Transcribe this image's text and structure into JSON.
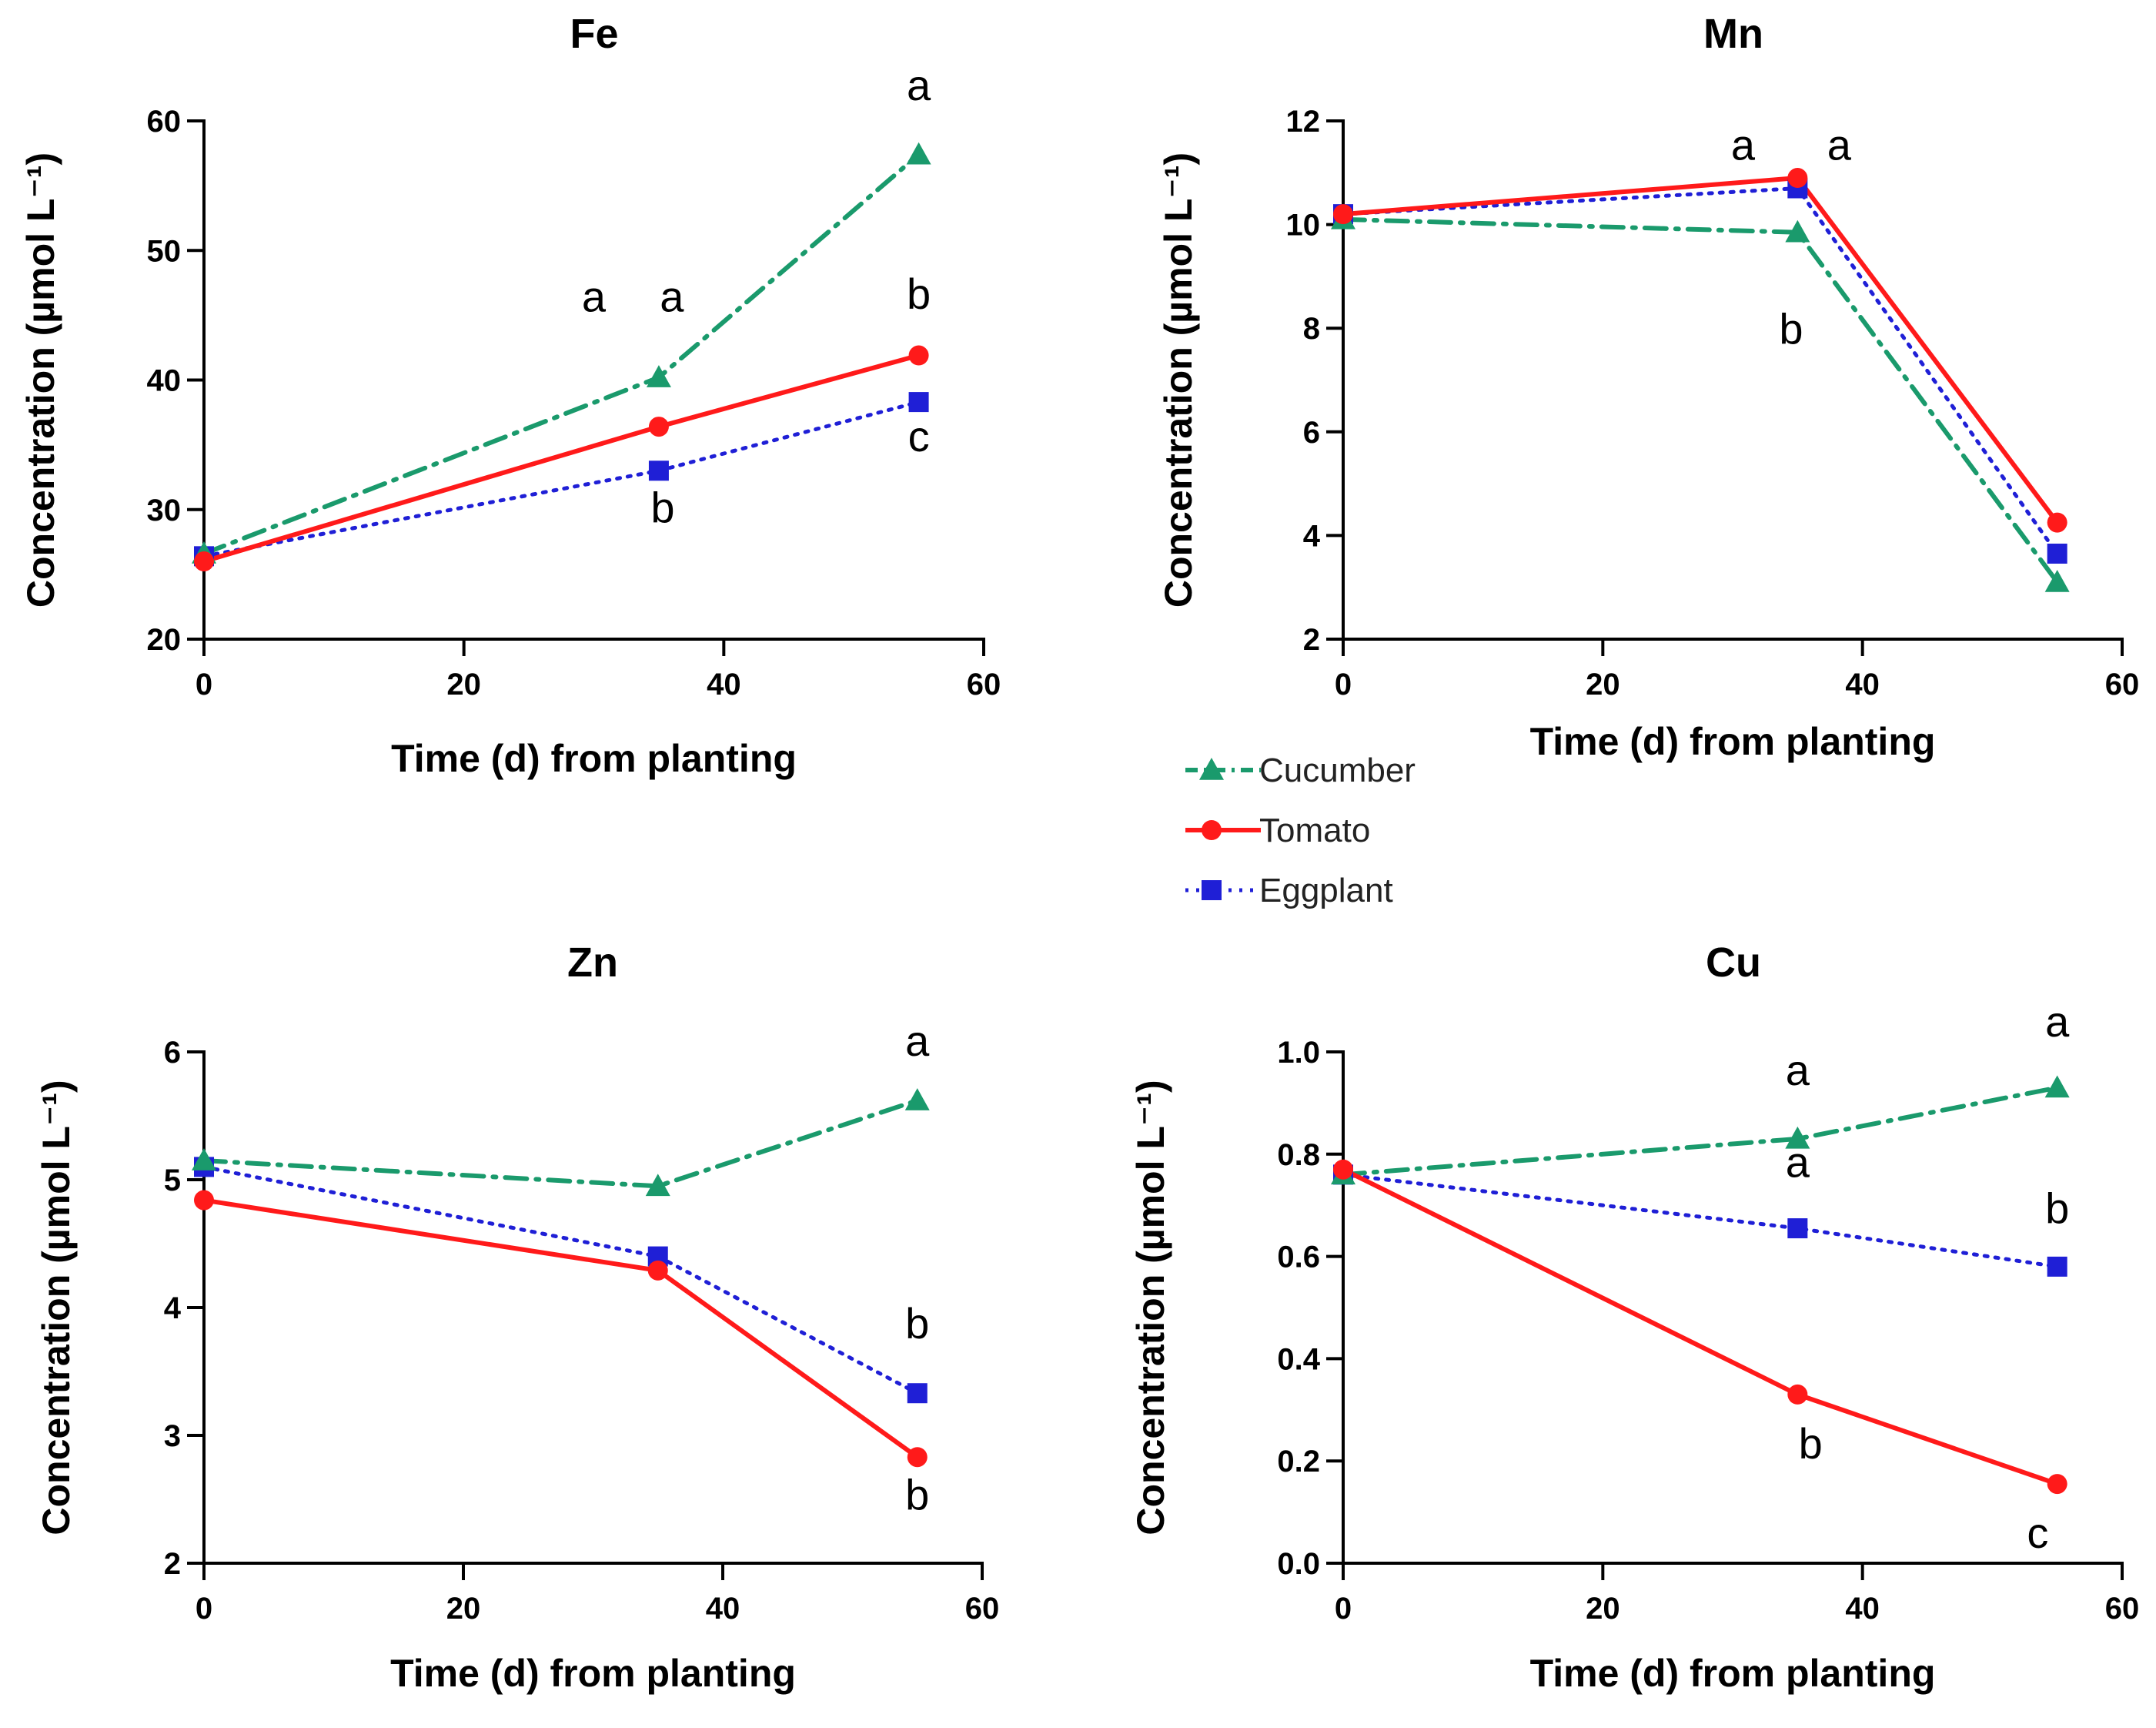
{
  "series_styles": {
    "Cucumber": {
      "color": "#1a9a6c",
      "dash": "28 12 4 12",
      "marker": "triangle",
      "width": 6
    },
    "Tomato": {
      "color": "#ff1a1a",
      "dash": "",
      "marker": "circle",
      "width": 6
    },
    "Eggplant": {
      "color": "#1f1fd6",
      "dash": "4 10",
      "marker": "square",
      "width": 5
    }
  },
  "legend": {
    "entries": [
      "Cucumber",
      "Tomato",
      "Eggplant"
    ]
  },
  "chart_data": [
    {
      "type": "line",
      "title": "Fe",
      "xlabel": "Time (d) from planting",
      "ylabel": "Concentration (µmol L⁻¹)",
      "xlim": [
        0,
        60
      ],
      "ylim": [
        20,
        60
      ],
      "xticks": [
        "0",
        "20",
        "40",
        "60"
      ],
      "yticks": [
        "20",
        "30",
        "40",
        "50",
        "60"
      ],
      "series": [
        {
          "name": "Cucumber",
          "x": [
            0,
            35,
            55
          ],
          "values": [
            26.6,
            40.2,
            57.4
          ]
        },
        {
          "name": "Tomato",
          "x": [
            0,
            35,
            55
          ],
          "values": [
            26.0,
            36.4,
            41.9
          ]
        },
        {
          "name": "Eggplant",
          "x": [
            0,
            35,
            55
          ],
          "values": [
            26.4,
            33.0,
            38.3
          ]
        }
      ],
      "annotations": [
        {
          "text": "a",
          "x": 30,
          "y": 45.3
        },
        {
          "text": "a",
          "x": 36,
          "y": 45.3
        },
        {
          "text": "a",
          "x": 55,
          "y": 61.6
        },
        {
          "text": "b",
          "x": 55,
          "y": 45.5
        },
        {
          "text": "c",
          "x": 55,
          "y": 34.5
        },
        {
          "text": "b",
          "x": 35.3,
          "y": 29.0
        }
      ]
    },
    {
      "type": "line",
      "title": "Mn",
      "xlabel": "Time (d) from planting",
      "ylabel": "Concentration (µmol L⁻¹)",
      "xlim": [
        0,
        60
      ],
      "ylim": [
        2,
        12
      ],
      "xticks": [
        "0",
        "20",
        "40",
        "60"
      ],
      "yticks": [
        "2",
        "4",
        "6",
        "8",
        "10",
        "12"
      ],
      "series": [
        {
          "name": "Cucumber",
          "x": [
            0,
            35,
            55
          ],
          "values": [
            10.1,
            9.85,
            3.1
          ]
        },
        {
          "name": "Tomato",
          "x": [
            0,
            35,
            55
          ],
          "values": [
            10.2,
            10.9,
            4.25
          ]
        },
        {
          "name": "Eggplant",
          "x": [
            0,
            35,
            55
          ],
          "values": [
            10.2,
            10.7,
            3.65
          ]
        }
      ],
      "annotations": [
        {
          "text": "a",
          "x": 30.8,
          "y": 11.25
        },
        {
          "text": "a",
          "x": 38.2,
          "y": 11.25
        },
        {
          "text": "b",
          "x": 34.5,
          "y": 7.7
        }
      ]
    },
    {
      "type": "line",
      "title": "Zn",
      "xlabel": "Time (d) from planting",
      "ylabel": "Concentration (µmol L⁻¹)",
      "xlim": [
        0,
        60
      ],
      "ylim": [
        2,
        6
      ],
      "xticks": [
        "0",
        "20",
        "40",
        "60"
      ],
      "yticks": [
        "2",
        "3",
        "4",
        "5",
        "6"
      ],
      "series": [
        {
          "name": "Cucumber",
          "x": [
            0,
            35,
            55
          ],
          "values": [
            5.15,
            4.95,
            5.62
          ]
        },
        {
          "name": "Tomato",
          "x": [
            0,
            35,
            55
          ],
          "values": [
            4.84,
            4.29,
            2.83
          ]
        },
        {
          "name": "Eggplant",
          "x": [
            0,
            35,
            55
          ],
          "values": [
            5.1,
            4.4,
            3.33
          ]
        }
      ],
      "annotations": [
        {
          "text": "a",
          "x": 55,
          "y": 5.97
        },
        {
          "text": "b",
          "x": 55,
          "y": 3.76
        },
        {
          "text": "b",
          "x": 55,
          "y": 2.42
        }
      ]
    },
    {
      "type": "line",
      "title": "Cu",
      "xlabel": "Time (d) from planting",
      "ylabel": "Concentration (µmol L⁻¹)",
      "xlim": [
        0,
        60
      ],
      "ylim": [
        0,
        1
      ],
      "xticks": [
        "0",
        "20",
        "40",
        "60"
      ],
      "yticks": [
        "0.0",
        "0.2",
        "0.4",
        "0.6",
        "0.8",
        "1.0"
      ],
      "series": [
        {
          "name": "Cucumber",
          "x": [
            0,
            35,
            55
          ],
          "values": [
            0.76,
            0.83,
            0.93
          ]
        },
        {
          "name": "Tomato",
          "x": [
            0,
            35,
            55
          ],
          "values": [
            0.77,
            0.33,
            0.155
          ]
        },
        {
          "name": "Eggplant",
          "x": [
            0,
            35,
            55
          ],
          "values": [
            0.76,
            0.655,
            0.58
          ]
        }
      ],
      "annotations": [
        {
          "text": "a",
          "x": 55,
          "y": 1.03
        },
        {
          "text": "a",
          "x": 35,
          "y": 0.935
        },
        {
          "text": "a",
          "x": 35,
          "y": 0.755
        },
        {
          "text": "b",
          "x": 55,
          "y": 0.665
        },
        {
          "text": "b",
          "x": 36,
          "y": 0.205
        },
        {
          "text": "c",
          "x": 53.5,
          "y": 0.03
        }
      ]
    }
  ]
}
